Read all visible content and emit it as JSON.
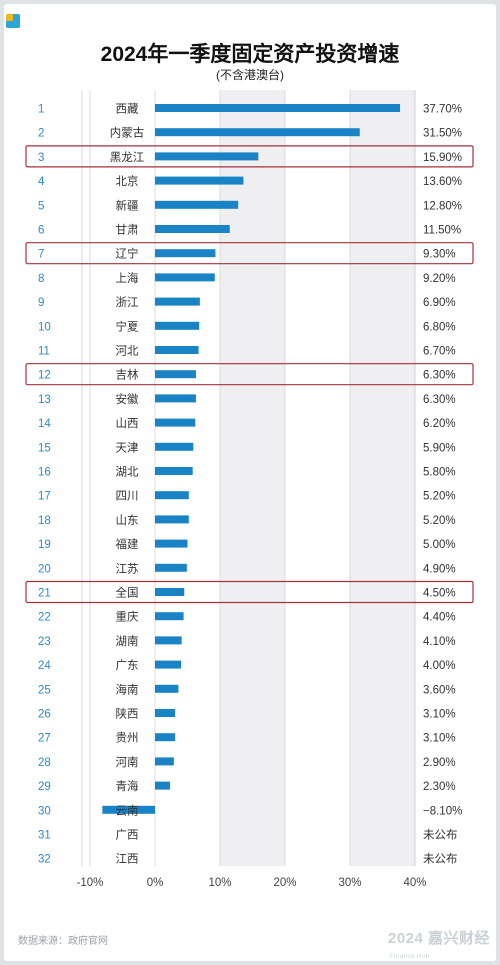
{
  "title": "2024年一季度固定资产投资增速",
  "subtitle": "(不含港澳台)",
  "footer": {
    "source": "数据来源：政府官网",
    "brand": "2024 嘉兴财经",
    "brand_sub": "Finance Hub"
  },
  "colors": {
    "bar": "#1a83c6",
    "rank": "#2d8ac7",
    "highlight": "#a3323e",
    "band": "#efeff1"
  },
  "chart_data": {
    "type": "bar",
    "orientation": "horizontal",
    "title": "2024年一季度固定资产投资增速",
    "subtitle": "(不含港澳台)",
    "xlim": [
      -10,
      40
    ],
    "xticks": [
      "-10%",
      "0%",
      "10%",
      "20%",
      "30%",
      "40%"
    ],
    "xtick_values": [
      -10,
      0,
      10,
      20,
      30,
      40
    ],
    "highlighted_ranks": [
      3,
      7,
      12,
      21
    ],
    "rows": [
      {
        "rank": "1",
        "name": "西藏",
        "value": 37.7,
        "label": "37.70%"
      },
      {
        "rank": "2",
        "name": "内蒙古",
        "value": 31.5,
        "label": "31.50%"
      },
      {
        "rank": "3",
        "name": "黑龙江",
        "value": 15.9,
        "label": "15.90%"
      },
      {
        "rank": "4",
        "name": "北京",
        "value": 13.6,
        "label": "13.60%"
      },
      {
        "rank": "5",
        "name": "新疆",
        "value": 12.8,
        "label": "12.80%"
      },
      {
        "rank": "6",
        "name": "甘肃",
        "value": 11.5,
        "label": "11.50%"
      },
      {
        "rank": "7",
        "name": "辽宁",
        "value": 9.3,
        "label": "9.30%"
      },
      {
        "rank": "8",
        "name": "上海",
        "value": 9.2,
        "label": "9.20%"
      },
      {
        "rank": "9",
        "name": "浙江",
        "value": 6.9,
        "label": "6.90%"
      },
      {
        "rank": "10",
        "name": "宁夏",
        "value": 6.8,
        "label": "6.80%"
      },
      {
        "rank": "11",
        "name": "河北",
        "value": 6.7,
        "label": "6.70%"
      },
      {
        "rank": "12",
        "name": "吉林",
        "value": 6.3,
        "label": "6.30%"
      },
      {
        "rank": "13",
        "name": "安徽",
        "value": 6.3,
        "label": "6.30%"
      },
      {
        "rank": "14",
        "name": "山西",
        "value": 6.2,
        "label": "6.20%"
      },
      {
        "rank": "15",
        "name": "天津",
        "value": 5.9,
        "label": "5.90%"
      },
      {
        "rank": "16",
        "name": "湖北",
        "value": 5.8,
        "label": "5.80%"
      },
      {
        "rank": "17",
        "name": "四川",
        "value": 5.2,
        "label": "5.20%"
      },
      {
        "rank": "18",
        "name": "山东",
        "value": 5.2,
        "label": "5.20%"
      },
      {
        "rank": "19",
        "name": "福建",
        "value": 5.0,
        "label": "5.00%"
      },
      {
        "rank": "20",
        "name": "江苏",
        "value": 4.9,
        "label": "4.90%"
      },
      {
        "rank": "21",
        "name": "全国",
        "value": 4.5,
        "label": "4.50%"
      },
      {
        "rank": "22",
        "name": "重庆",
        "value": 4.4,
        "label": "4.40%"
      },
      {
        "rank": "23",
        "name": "湖南",
        "value": 4.1,
        "label": "4.10%"
      },
      {
        "rank": "24",
        "name": "广东",
        "value": 4.0,
        "label": "4.00%"
      },
      {
        "rank": "25",
        "name": "海南",
        "value": 3.6,
        "label": "3.60%"
      },
      {
        "rank": "26",
        "name": "陕西",
        "value": 3.1,
        "label": "3.10%"
      },
      {
        "rank": "27",
        "name": "贵州",
        "value": 3.1,
        "label": "3.10%"
      },
      {
        "rank": "28",
        "name": "河南",
        "value": 2.9,
        "label": "2.90%"
      },
      {
        "rank": "29",
        "name": "青海",
        "value": 2.3,
        "label": "2.30%"
      },
      {
        "rank": "30",
        "name": "云南",
        "value": -8.1,
        "label": "−8.10%"
      },
      {
        "rank": "31",
        "name": "广西",
        "value": null,
        "label": "未公布"
      },
      {
        "rank": "32",
        "name": "江西",
        "value": null,
        "label": "未公布"
      }
    ]
  }
}
